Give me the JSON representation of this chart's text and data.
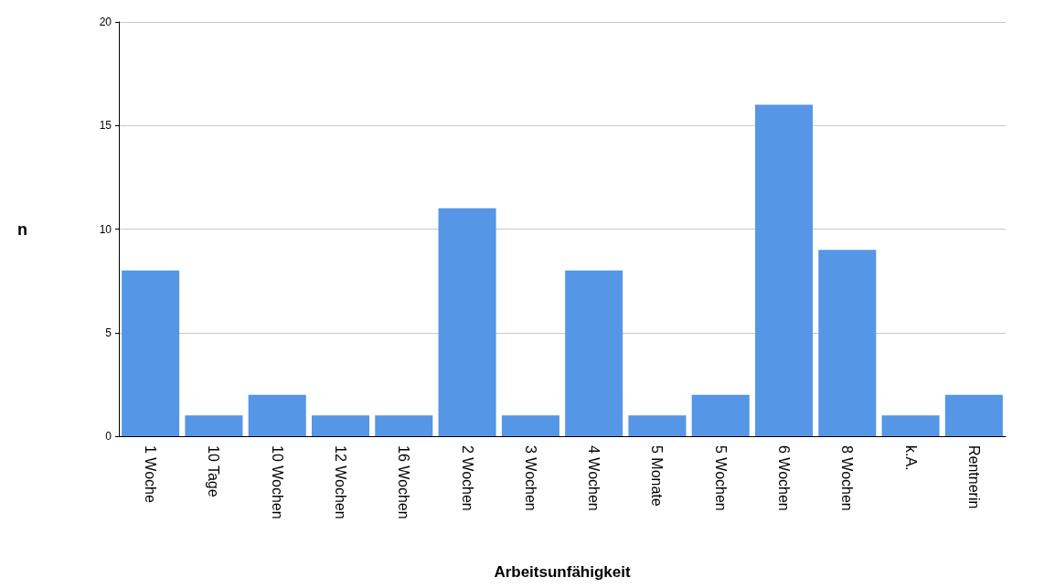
{
  "chart_data": {
    "type": "bar",
    "xlabel": "Arbeitsunfähigkeit",
    "ylabel": "n",
    "categories": [
      "1 Woche",
      "10 Tage",
      "10 Wochen",
      "12 Wochen",
      "16 Wochen",
      "2 Wochen",
      "3 Wochen",
      "4 Wochen",
      "5 Monate",
      "5 Wochen",
      "6 Wochen",
      "8 Wochen",
      "k.A.",
      "Rentnerin"
    ],
    "values": [
      8,
      1,
      2,
      1,
      1,
      11,
      1,
      8,
      1,
      2,
      16,
      9,
      1,
      2
    ],
    "color": "#5596e6",
    "ylim": [
      0,
      20
    ],
    "yticks": [
      0,
      5,
      10,
      15,
      20
    ],
    "grid": "y"
  }
}
